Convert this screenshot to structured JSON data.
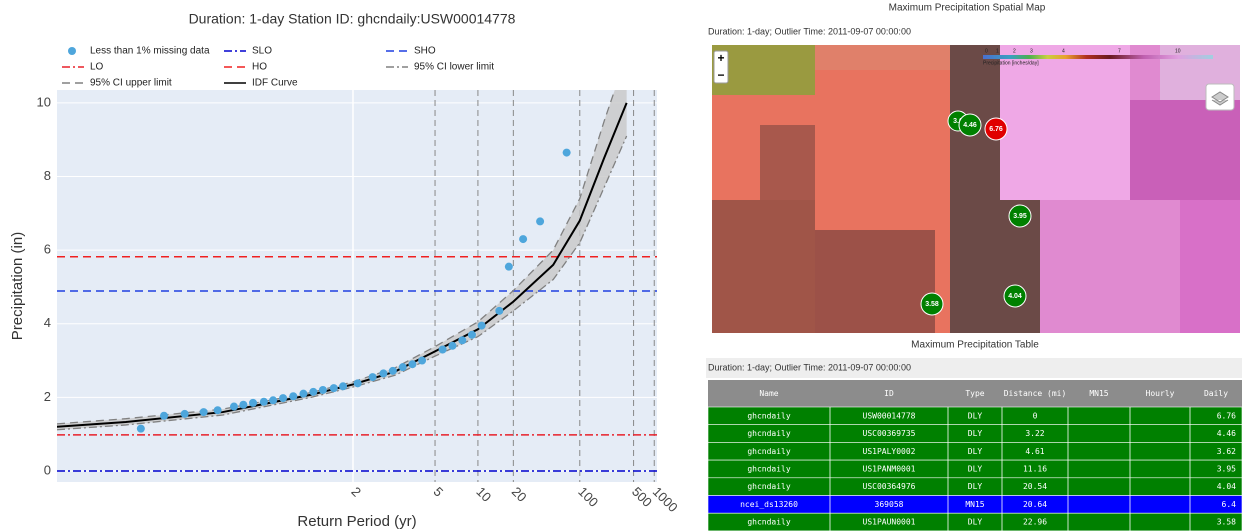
{
  "chart_data": {
    "type": "idf",
    "title": "Duration: 1-day   Station ID: ghcndaily:USW00014778",
    "x_label": "Return Period (yr)",
    "y_label": "Precipitation (in)",
    "xscale": "normal-probability",
    "xlim": [
      1.0012,
      1100
    ],
    "xticks": [
      2,
      5,
      10,
      20,
      100,
      500,
      1000
    ],
    "ylim": [
      -0.3,
      10.35
    ],
    "yticks": [
      0,
      2,
      4,
      6,
      8,
      10
    ],
    "grid": true,
    "series": [
      {
        "name": "Less than 1% missing data",
        "kind": "scatter",
        "color": "#4ea6dc",
        "x": [
          1.015,
          1.027,
          1.044,
          1.067,
          1.09,
          1.125,
          1.15,
          1.18,
          1.22,
          1.26,
          1.31,
          1.37,
          1.44,
          1.52,
          1.61,
          1.73,
          1.85,
          2.08,
          2.38,
          2.65,
          2.93,
          3.28,
          3.69,
          4.18,
          5.59,
          6.5,
          7.63,
          9.0,
          10.7,
          15,
          18.2,
          24.7,
          36.4,
          70.4
        ],
        "values": [
          1.15,
          1.5,
          1.55,
          1.6,
          1.65,
          1.75,
          1.8,
          1.85,
          1.88,
          1.92,
          1.98,
          2.03,
          2.1,
          2.15,
          2.2,
          2.25,
          2.3,
          2.38,
          2.55,
          2.65,
          2.72,
          2.82,
          2.9,
          3.0,
          3.3,
          3.4,
          3.55,
          3.7,
          3.95,
          4.35,
          5.55,
          6.3,
          6.78,
          8.65
        ]
      },
      {
        "name": "SLO",
        "kind": "hline",
        "color": "#0000cd",
        "dash": "dashdot",
        "value": 0
      },
      {
        "name": "SHO",
        "kind": "hline",
        "color": "#1f3fe0",
        "dash": "dashed",
        "value": 4.89
      },
      {
        "name": "LO",
        "kind": "hline",
        "color": "#e8202a",
        "dash": "dashdot",
        "value": 0.98
      },
      {
        "name": "HO",
        "kind": "hline",
        "color": "#f02020",
        "dash": "dashed",
        "value": 5.82
      },
      {
        "name": "95% CI lower limit",
        "kind": "line",
        "color": "#808080",
        "dash": "dashdot",
        "x": [
          1.0012,
          1.01,
          1.1,
          1.5,
          2,
          3,
          5,
          10,
          20,
          50,
          100,
          200,
          400
        ],
        "values": [
          1.12,
          1.25,
          1.52,
          2.0,
          2.28,
          2.6,
          3.12,
          3.65,
          4.35,
          5.2,
          6.2,
          7.7,
          9.1
        ]
      },
      {
        "name": "95% CI upper limit",
        "kind": "line",
        "color": "#808080",
        "dash": "dashed",
        "x": [
          1.0012,
          1.01,
          1.1,
          1.5,
          2,
          3,
          5,
          10,
          20,
          50,
          100,
          200,
          400
        ],
        "values": [
          1.28,
          1.42,
          1.68,
          2.13,
          2.42,
          2.8,
          3.38,
          4.05,
          4.9,
          6.0,
          7.4,
          9.5,
          11.3
        ]
      },
      {
        "name": "IDF Curve",
        "kind": "line",
        "color": "#000000",
        "dash": "solid",
        "x": [
          1.0012,
          1.01,
          1.1,
          1.5,
          2,
          3,
          5,
          10,
          20,
          50,
          100,
          200,
          400
        ],
        "values": [
          1.2,
          1.33,
          1.6,
          2.07,
          2.35,
          2.7,
          3.25,
          3.85,
          4.6,
          5.6,
          6.8,
          8.5,
          10
        ]
      }
    ]
  },
  "map": {
    "title": "Maximum Precipitation Spatial Map",
    "subtitle": "Duration: 1-day; Outlier Time: 2011-09-07 00:00:00",
    "zoom_in": "+",
    "zoom_out": "−",
    "legend": {
      "labels": [
        "0",
        "1",
        "2",
        "3",
        "4",
        "7",
        "10"
      ],
      "title": "Precipitation [inches/day]"
    },
    "markers": [
      {
        "label": "3.6"
      },
      {
        "label": "4.46"
      },
      {
        "label": "6.76"
      },
      {
        "label": "3.95"
      },
      {
        "label": "4.04"
      },
      {
        "label": "3.58"
      }
    ]
  },
  "table": {
    "title": "Maximum Precipitation Table",
    "subtitle": "Duration: 1-day; Outlier Time: 2011-09-07 00:00:00",
    "columns": [
      "Name",
      "ID",
      "Type",
      "Distance (mi)",
      "MN15",
      "Hourly",
      "Daily"
    ],
    "rows": [
      {
        "color": "#008000",
        "cells": [
          "ghcndaily",
          "USW00014778",
          "DLY",
          "0",
          null,
          null,
          "6.76"
        ]
      },
      {
        "color": "#008000",
        "cells": [
          "ghcndaily",
          "USC00369735",
          "DLY",
          "3.22",
          null,
          null,
          "4.46"
        ]
      },
      {
        "color": "#008000",
        "cells": [
          "ghcndaily",
          "US1PALY0002",
          "DLY",
          "4.61",
          null,
          null,
          "3.62"
        ]
      },
      {
        "color": "#008000",
        "cells": [
          "ghcndaily",
          "US1PANM0001",
          "DLY",
          "11.16",
          null,
          null,
          "3.95"
        ]
      },
      {
        "color": "#008000",
        "cells": [
          "ghcndaily",
          "USC00364976",
          "DLY",
          "20.54",
          null,
          null,
          "4.04"
        ]
      },
      {
        "color": "#0000ff",
        "cells": [
          "ncei_ds13260",
          "369058",
          "MN15",
          "20.64",
          null,
          null,
          "6.4"
        ]
      },
      {
        "color": "#008000",
        "cells": [
          "ghcndaily",
          "US1PAUN0001",
          "DLY",
          "22.96",
          null,
          null,
          "3.58"
        ]
      }
    ]
  }
}
